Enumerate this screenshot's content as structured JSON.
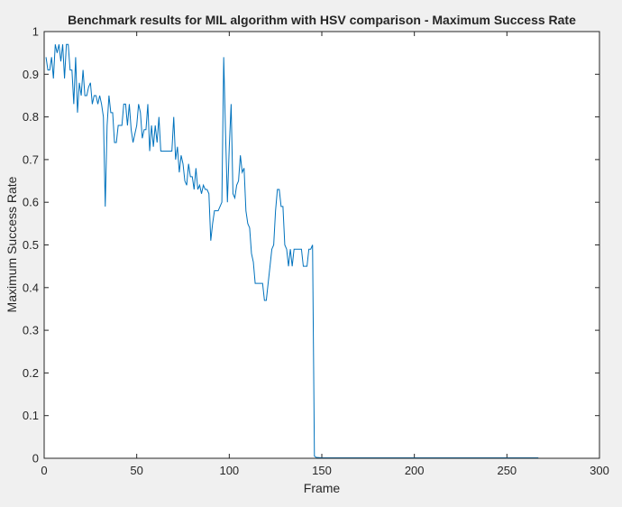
{
  "chart_data": {
    "type": "line",
    "title": "Benchmark results for MIL algorithm with HSV comparison - Maximum Success Rate",
    "xlabel": "Frame",
    "ylabel": "Maximum Success Rate",
    "xlim": [
      0,
      300
    ],
    "ylim": [
      0,
      1
    ],
    "xticks": [
      0,
      50,
      100,
      150,
      200,
      250,
      300
    ],
    "yticks": [
      0,
      0.1,
      0.2,
      0.3,
      0.4,
      0.5,
      0.6,
      0.7,
      0.8,
      0.9,
      1
    ],
    "xtick_labels": [
      "0",
      "50",
      "100",
      "150",
      "200",
      "250",
      "300"
    ],
    "ytick_labels": [
      "0",
      "0.1",
      "0.2",
      "0.3",
      "0.4",
      "0.5",
      "0.6",
      "0.7",
      "0.8",
      "0.9",
      "1"
    ],
    "grid": false,
    "line_color": "#0072bd",
    "series": [
      {
        "name": "",
        "x": [
          1,
          2,
          3,
          4,
          5,
          6,
          7,
          8,
          9,
          10,
          11,
          12,
          13,
          14,
          15,
          16,
          17,
          18,
          19,
          20,
          21,
          22,
          23,
          24,
          25,
          26,
          27,
          28,
          29,
          30,
          31,
          32,
          33,
          34,
          35,
          36,
          37,
          38,
          39,
          40,
          41,
          42,
          43,
          44,
          45,
          46,
          47,
          48,
          49,
          50,
          51,
          52,
          53,
          54,
          55,
          56,
          57,
          58,
          59,
          60,
          61,
          62,
          63,
          64,
          65,
          66,
          67,
          68,
          69,
          70,
          71,
          72,
          73,
          74,
          75,
          76,
          77,
          78,
          79,
          80,
          81,
          82,
          83,
          84,
          85,
          86,
          87,
          88,
          89,
          90,
          91,
          92,
          93,
          94,
          95,
          96,
          97,
          98,
          99,
          100,
          101,
          102,
          103,
          104,
          105,
          106,
          107,
          108,
          109,
          110,
          111,
          112,
          113,
          114,
          115,
          116,
          117,
          118,
          119,
          120,
          121,
          122,
          123,
          124,
          125,
          126,
          127,
          128,
          129,
          130,
          131,
          132,
          133,
          134,
          135,
          136,
          137,
          138,
          139,
          140,
          141,
          142,
          143,
          144,
          145,
          146,
          147,
          150,
          200,
          250,
          267
        ],
        "y": [
          0.94,
          0.91,
          0.91,
          0.94,
          0.89,
          0.97,
          0.95,
          0.97,
          0.93,
          0.97,
          0.89,
          0.97,
          0.97,
          0.91,
          0.91,
          0.83,
          0.94,
          0.81,
          0.88,
          0.85,
          0.91,
          0.85,
          0.85,
          0.87,
          0.88,
          0.83,
          0.85,
          0.85,
          0.83,
          0.85,
          0.83,
          0.8,
          0.59,
          0.78,
          0.85,
          0.81,
          0.81,
          0.74,
          0.74,
          0.78,
          0.78,
          0.78,
          0.83,
          0.83,
          0.78,
          0.83,
          0.77,
          0.74,
          0.76,
          0.78,
          0.83,
          0.81,
          0.75,
          0.77,
          0.77,
          0.83,
          0.72,
          0.78,
          0.73,
          0.78,
          0.74,
          0.8,
          0.72,
          0.72,
          0.72,
          0.72,
          0.72,
          0.72,
          0.72,
          0.8,
          0.7,
          0.73,
          0.67,
          0.71,
          0.69,
          0.65,
          0.64,
          0.69,
          0.66,
          0.66,
          0.63,
          0.68,
          0.63,
          0.64,
          0.62,
          0.64,
          0.63,
          0.63,
          0.62,
          0.51,
          0.55,
          0.58,
          0.58,
          0.58,
          0.59,
          0.6,
          0.94,
          0.76,
          0.6,
          0.73,
          0.83,
          0.62,
          0.61,
          0.64,
          0.65,
          0.71,
          0.67,
          0.68,
          0.58,
          0.55,
          0.54,
          0.48,
          0.46,
          0.41,
          0.41,
          0.41,
          0.41,
          0.41,
          0.37,
          0.37,
          0.41,
          0.45,
          0.49,
          0.5,
          0.58,
          0.63,
          0.63,
          0.59,
          0.59,
          0.5,
          0.49,
          0.45,
          0.49,
          0.45,
          0.49,
          0.49,
          0.49,
          0.49,
          0.49,
          0.45,
          0.45,
          0.45,
          0.49,
          0.49,
          0.5,
          0.005,
          0.002,
          0.001,
          0.001,
          0.001,
          0.001
        ]
      }
    ]
  }
}
